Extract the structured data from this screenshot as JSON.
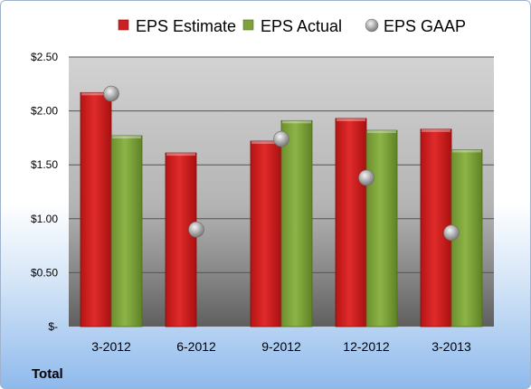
{
  "chart_data": {
    "type": "bar",
    "categories": [
      "3-2012",
      "6-2012",
      "9-2012",
      "12-2012",
      "3-2013"
    ],
    "series": [
      {
        "name": "EPS Estimate",
        "kind": "bar",
        "values": [
          2.17,
          1.61,
          1.72,
          1.93,
          1.83
        ],
        "color": "#cc1f1f"
      },
      {
        "name": "EPS Actual",
        "kind": "bar",
        "values": [
          1.77,
          null,
          1.91,
          1.82,
          1.64
        ],
        "color": "#7da23b"
      },
      {
        "name": "EPS GAAP",
        "kind": "scatter",
        "values": [
          2.16,
          0.9,
          1.74,
          1.38,
          0.87
        ],
        "color": "#a8a8a8"
      }
    ],
    "yticks": [
      {
        "value": 0,
        "label": "$-"
      },
      {
        "value": 0.5,
        "label": "$0.50"
      },
      {
        "value": 1.0,
        "label": "$1.00"
      },
      {
        "value": 1.5,
        "label": "$1.50"
      },
      {
        "value": 2.0,
        "label": "$2.00"
      },
      {
        "value": 2.5,
        "label": "$2.50"
      }
    ],
    "ylim": [
      0,
      2.5
    ],
    "grid": true,
    "legend_position": "top"
  },
  "footer": {
    "label": "Total"
  }
}
